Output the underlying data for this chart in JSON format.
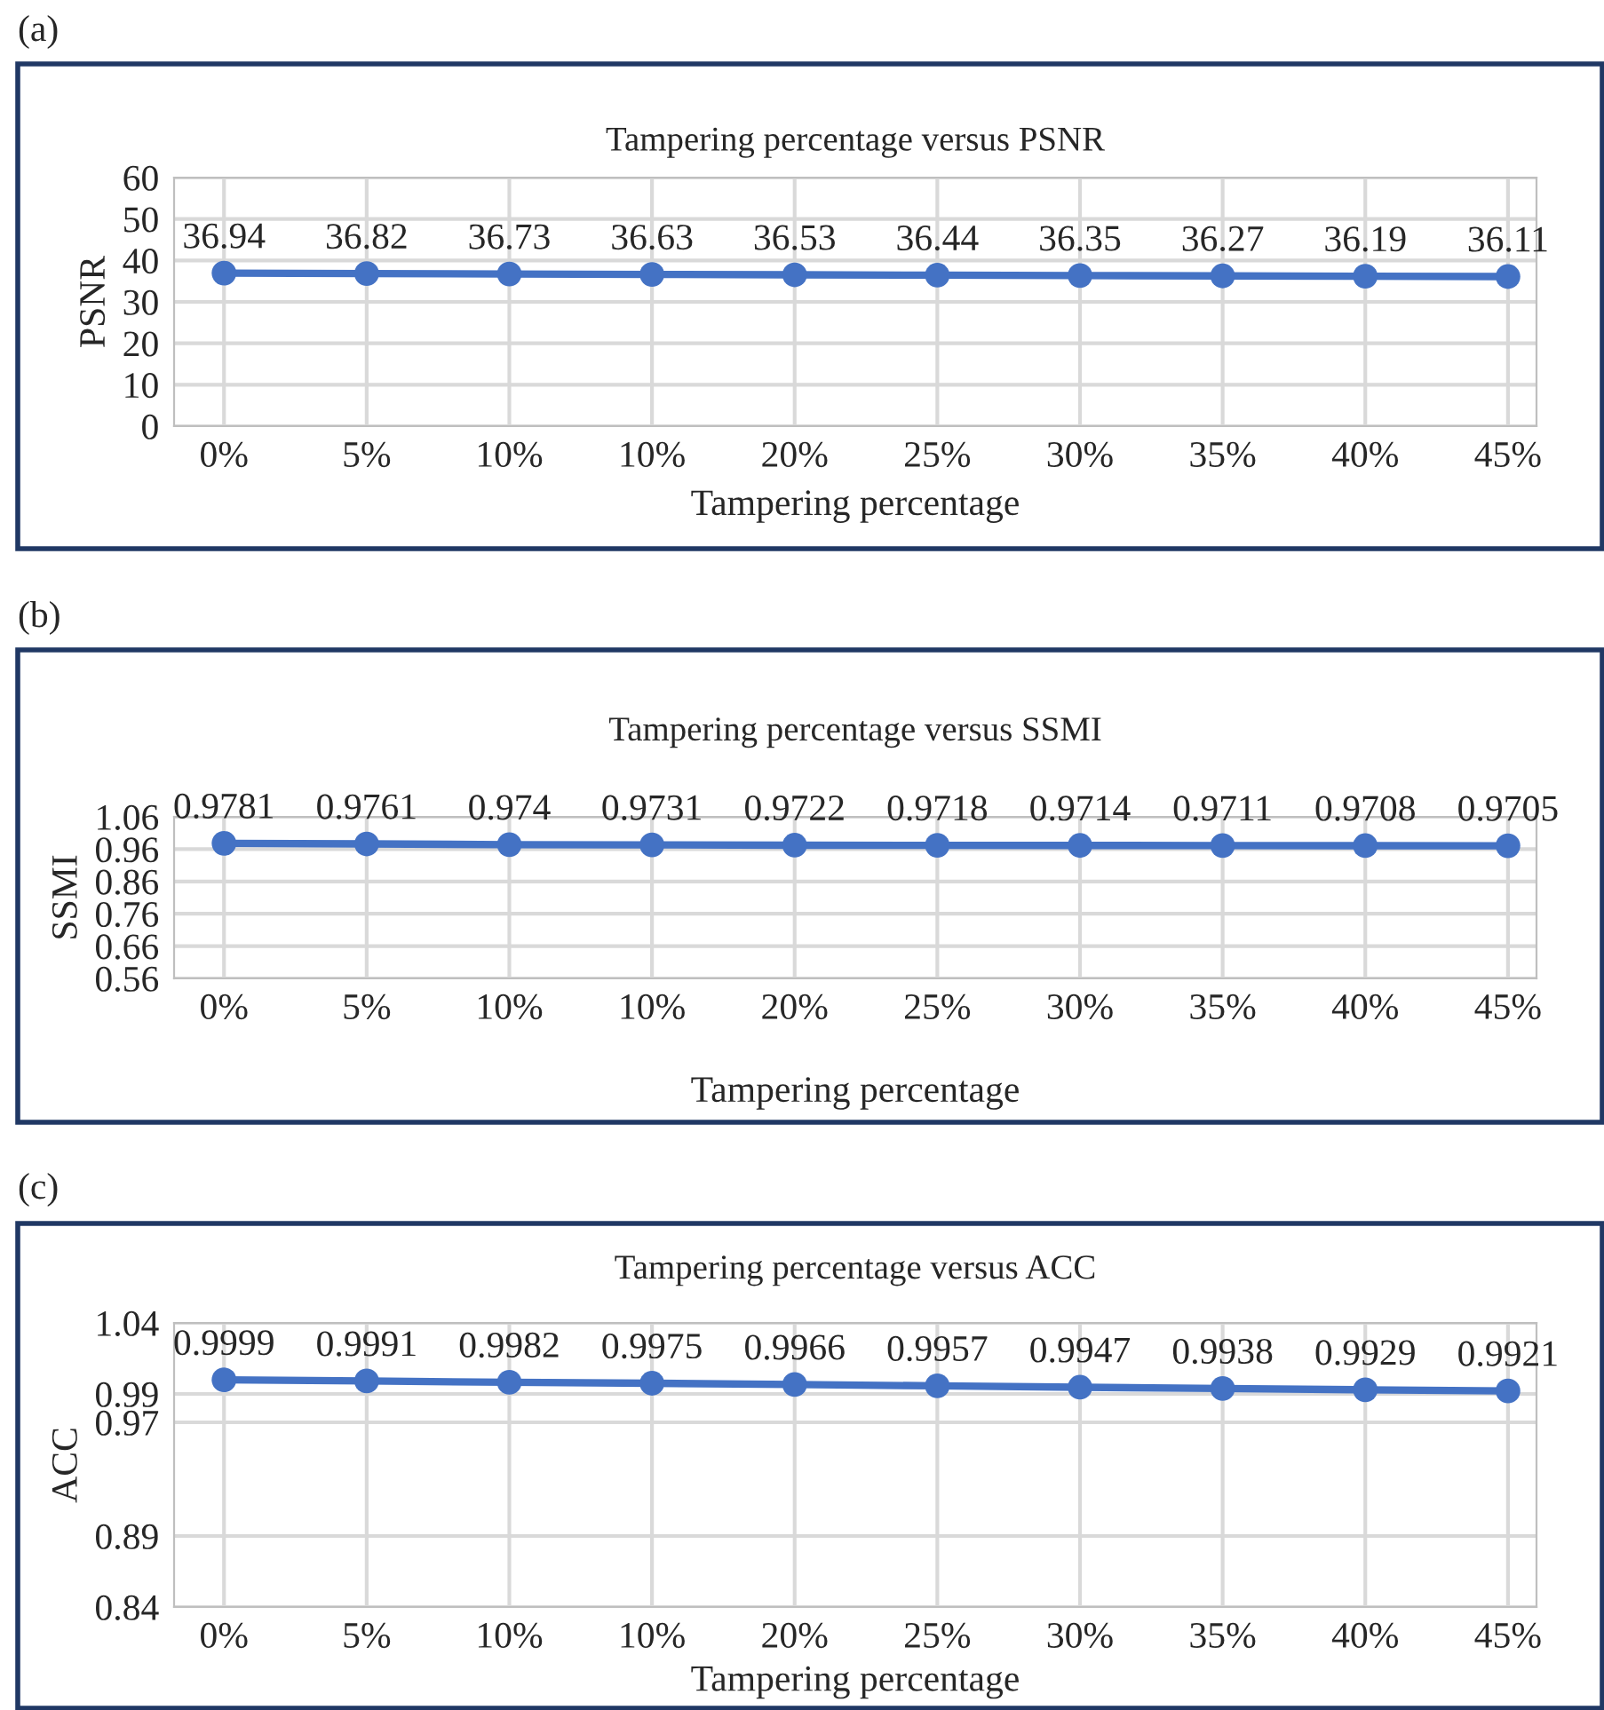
{
  "chart_data": [
    {
      "type": "line",
      "title": "Tampering percentage versus PSNR",
      "xlabel": "Tampering percentage",
      "ylabel": "PSNR",
      "annotations": [
        "(a)"
      ],
      "categories": [
        "0%",
        "5%",
        "10%",
        "10%",
        "20%",
        "25%",
        "30%",
        "35%",
        "40%",
        "45%"
      ],
      "series": [
        {
          "color": "#4472c4",
          "values": [
            36.94,
            36.82,
            36.73,
            36.63,
            36.53,
            36.44,
            36.35,
            36.27,
            36.19,
            36.11
          ]
        }
      ],
      "ylim": [
        0,
        60
      ],
      "yticks": [
        0,
        10,
        20,
        30,
        40,
        50,
        60
      ],
      "grid": true,
      "marker": "circle",
      "line_style": "solid",
      "data_labels": true
    },
    {
      "type": "line",
      "title": "Tampering percentage versus SSMI",
      "xlabel": "Tampering percentage",
      "ylabel": "SSMI",
      "annotations": [
        "(b)"
      ],
      "categories": [
        "0%",
        "5%",
        "10%",
        "10%",
        "20%",
        "25%",
        "30%",
        "35%",
        "40%",
        "45%"
      ],
      "series": [
        {
          "color": "#4472c4",
          "values": [
            0.9781,
            0.9761,
            0.974,
            0.9731,
            0.9722,
            0.9718,
            0.9714,
            0.9711,
            0.9708,
            0.9705
          ]
        }
      ],
      "ylim": [
        0.56,
        1.06
      ],
      "yticks": [
        0.56,
        0.66,
        0.76,
        0.86,
        0.96,
        1.06
      ],
      "grid": true,
      "marker": "circle",
      "line_style": "solid",
      "data_labels": true
    },
    {
      "type": "line",
      "title": "Tampering percentage versus ACC",
      "xlabel": "Tampering percentage",
      "ylabel": "ACC",
      "annotations": [
        "(c)"
      ],
      "categories": [
        "0%",
        "5%",
        "10%",
        "10%",
        "20%",
        "25%",
        "30%",
        "35%",
        "40%",
        "45%"
      ],
      "series": [
        {
          "color": "#4472c4",
          "values": [
            0.9999,
            0.9991,
            0.9982,
            0.9975,
            0.9966,
            0.9957,
            0.9947,
            0.9938,
            0.9929,
            0.9921
          ]
        }
      ],
      "ylim": [
        0.84,
        1.04
      ],
      "yticks": [
        0.84,
        0.89,
        0.97,
        0.99,
        1.04
      ],
      "grid": true,
      "marker": "circle",
      "line_style": "solid",
      "data_labels": true
    }
  ]
}
